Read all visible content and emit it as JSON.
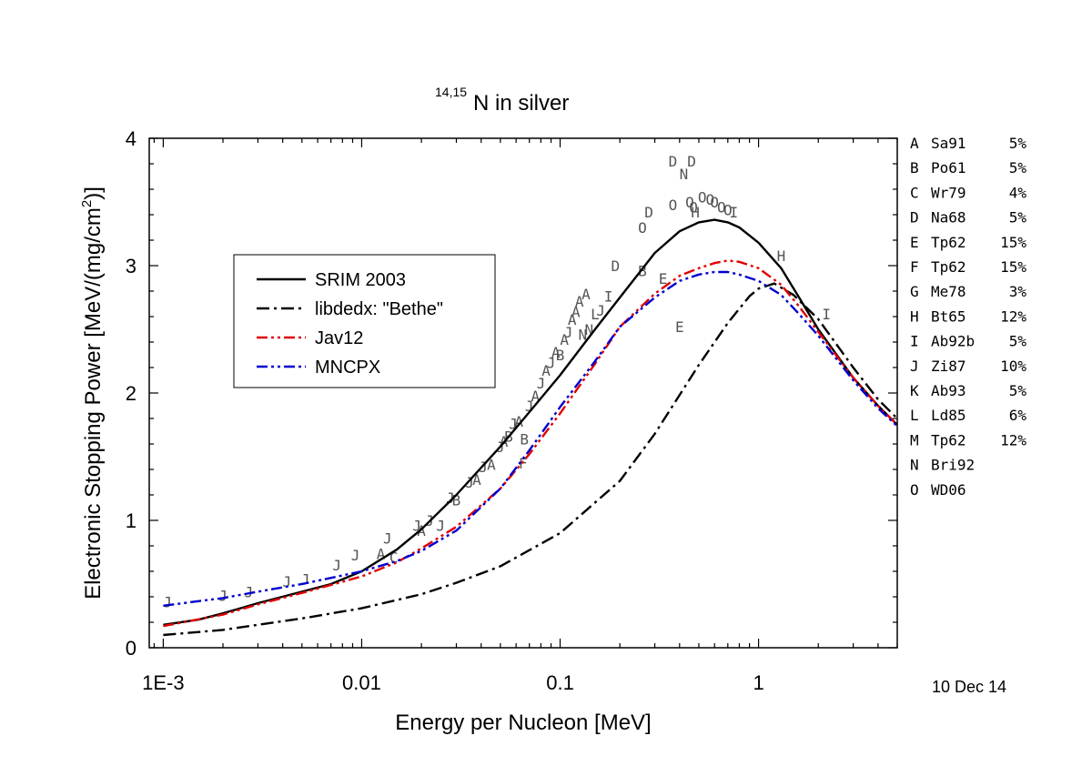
{
  "title_sup": "14,15",
  "title_main": "N in silver",
  "date_stamp": "10 Dec 14",
  "chart_data": {
    "type": "line",
    "title": "14,15N in silver",
    "xlabel": "Energy per Nucleon [MeV]",
    "ylabel_main": "Electronic Stopping Power [MeV/(mg/cm",
    "ylabel_sup": "2",
    "ylabel_end": ")]",
    "x_scale": "log",
    "xlim": [
      0.00085,
      5
    ],
    "ylim": [
      0,
      4
    ],
    "x_ticks": [
      {
        "value": 0.001,
        "label": "1E-3"
      },
      {
        "value": 0.01,
        "label": "0.01"
      },
      {
        "value": 0.1,
        "label": "0.1"
      },
      {
        "value": 1,
        "label": "1"
      }
    ],
    "y_ticks": [
      {
        "value": 0,
        "label": "0"
      },
      {
        "value": 1,
        "label": "1"
      },
      {
        "value": 2,
        "label": "2"
      },
      {
        "value": 3,
        "label": "3"
      },
      {
        "value": 4,
        "label": "4"
      }
    ],
    "legend_position": "upper-left",
    "series": [
      {
        "name": "SRIM 2003",
        "color": "#000000",
        "dash": "solid",
        "x": [
          0.001,
          0.0015,
          0.002,
          0.003,
          0.005,
          0.007,
          0.01,
          0.015,
          0.02,
          0.03,
          0.05,
          0.07,
          0.1,
          0.15,
          0.2,
          0.3,
          0.4,
          0.5,
          0.6,
          0.7,
          0.8,
          1.0,
          1.3,
          1.6,
          2.0,
          3.0,
          4.0,
          5.0
        ],
        "y": [
          0.18,
          0.22,
          0.27,
          0.35,
          0.44,
          0.5,
          0.6,
          0.77,
          0.93,
          1.2,
          1.58,
          1.85,
          2.14,
          2.5,
          2.75,
          3.1,
          3.27,
          3.34,
          3.36,
          3.34,
          3.3,
          3.18,
          2.98,
          2.75,
          2.5,
          2.12,
          1.9,
          1.75
        ]
      },
      {
        "name": "libdedx: \"Bethe\"",
        "color": "#000000",
        "dash": "dashdot",
        "x": [
          0.001,
          0.002,
          0.003,
          0.005,
          0.01,
          0.02,
          0.03,
          0.05,
          0.1,
          0.2,
          0.3,
          0.5,
          0.7,
          0.9,
          1.0,
          1.2,
          1.5,
          2.0,
          3.0,
          4.0,
          5.0
        ],
        "y": [
          0.1,
          0.14,
          0.18,
          0.23,
          0.31,
          0.42,
          0.51,
          0.64,
          0.9,
          1.31,
          1.68,
          2.22,
          2.55,
          2.76,
          2.82,
          2.86,
          2.77,
          2.58,
          2.2,
          1.95,
          1.8
        ]
      },
      {
        "name": "Jav12",
        "color": "#e00000",
        "dash": "dashdotdot",
        "x": [
          0.001,
          0.002,
          0.003,
          0.005,
          0.01,
          0.015,
          0.02,
          0.03,
          0.05,
          0.07,
          0.1,
          0.15,
          0.2,
          0.3,
          0.4,
          0.5,
          0.6,
          0.7,
          0.8,
          1.0,
          1.3,
          1.6,
          2.0,
          3.0,
          4.0,
          5.0
        ],
        "y": [
          0.17,
          0.26,
          0.34,
          0.43,
          0.56,
          0.67,
          0.78,
          0.95,
          1.25,
          1.52,
          1.84,
          2.23,
          2.52,
          2.78,
          2.92,
          2.98,
          3.02,
          3.04,
          3.03,
          2.98,
          2.85,
          2.68,
          2.48,
          2.12,
          1.9,
          1.75
        ]
      },
      {
        "name": "MNCPX",
        "color": "#0000d0",
        "dash": "dashdotdot",
        "x": [
          0.001,
          0.002,
          0.003,
          0.005,
          0.01,
          0.015,
          0.02,
          0.03,
          0.05,
          0.07,
          0.1,
          0.15,
          0.2,
          0.3,
          0.4,
          0.5,
          0.6,
          0.7,
          0.8,
          1.0,
          1.3,
          1.6,
          2.0,
          3.0,
          4.0,
          5.0
        ],
        "y": [
          0.33,
          0.39,
          0.44,
          0.5,
          0.6,
          0.68,
          0.76,
          0.92,
          1.25,
          1.55,
          1.89,
          2.25,
          2.52,
          2.75,
          2.88,
          2.93,
          2.95,
          2.95,
          2.93,
          2.88,
          2.77,
          2.62,
          2.45,
          2.1,
          1.88,
          1.74
        ]
      }
    ],
    "measurement_legend": [
      {
        "code": "A",
        "ref": "Sa91",
        "err": "5%"
      },
      {
        "code": "B",
        "ref": "Po61",
        "err": "5%"
      },
      {
        "code": "C",
        "ref": "Wr79",
        "err": "4%"
      },
      {
        "code": "D",
        "ref": "Na68",
        "err": "5%"
      },
      {
        "code": "E",
        "ref": "Tp62",
        "err": "15%"
      },
      {
        "code": "F",
        "ref": "Tp62",
        "err": "15%"
      },
      {
        "code": "G",
        "ref": "Me78",
        "err": "3%"
      },
      {
        "code": "H",
        "ref": "Bt65",
        "err": "12%"
      },
      {
        "code": "I",
        "ref": "Ab92b",
        "err": "5%"
      },
      {
        "code": "J",
        "ref": "Zi87",
        "err": "10%"
      },
      {
        "code": "K",
        "ref": "Ab93",
        "err": "5%"
      },
      {
        "code": "L",
        "ref": "Ld85",
        "err": "6%"
      },
      {
        "code": "M",
        "ref": "Tp62",
        "err": "12%"
      },
      {
        "code": "N",
        "ref": "Bri92",
        "err": ""
      },
      {
        "code": "O",
        "ref": "WD06",
        "err": ""
      }
    ],
    "measurements": [
      {
        "m": "J",
        "x": 0.00105,
        "y": 0.36
      },
      {
        "m": "J",
        "x": 0.002,
        "y": 0.41
      },
      {
        "m": "J",
        "x": 0.0027,
        "y": 0.44
      },
      {
        "m": "J",
        "x": 0.0042,
        "y": 0.52
      },
      {
        "m": "J",
        "x": 0.0052,
        "y": 0.54
      },
      {
        "m": "J",
        "x": 0.0075,
        "y": 0.65
      },
      {
        "m": "J",
        "x": 0.0093,
        "y": 0.73
      },
      {
        "m": "A",
        "x": 0.0125,
        "y": 0.74
      },
      {
        "m": "C",
        "x": 0.0145,
        "y": 0.71
      },
      {
        "m": "J",
        "x": 0.0135,
        "y": 0.86
      },
      {
        "m": "J",
        "x": 0.019,
        "y": 0.96
      },
      {
        "m": "A",
        "x": 0.02,
        "y": 0.92
      },
      {
        "m": "J",
        "x": 0.022,
        "y": 1.0
      },
      {
        "m": "J",
        "x": 0.025,
        "y": 0.96
      },
      {
        "m": "J",
        "x": 0.028,
        "y": 1.18
      },
      {
        "m": "B",
        "x": 0.03,
        "y": 1.16
      },
      {
        "m": "J",
        "x": 0.035,
        "y": 1.3
      },
      {
        "m": "A",
        "x": 0.038,
        "y": 1.32
      },
      {
        "m": "J",
        "x": 0.041,
        "y": 1.42
      },
      {
        "m": "A",
        "x": 0.045,
        "y": 1.44
      },
      {
        "m": "J",
        "x": 0.05,
        "y": 1.58
      },
      {
        "m": "A",
        "x": 0.052,
        "y": 1.62
      },
      {
        "m": "B",
        "x": 0.055,
        "y": 1.66
      },
      {
        "m": "J",
        "x": 0.058,
        "y": 1.76
      },
      {
        "m": "A",
        "x": 0.062,
        "y": 1.78
      },
      {
        "m": "B",
        "x": 0.066,
        "y": 1.64
      },
      {
        "m": "J",
        "x": 0.07,
        "y": 1.9
      },
      {
        "m": "A",
        "x": 0.075,
        "y": 1.98
      },
      {
        "m": "J",
        "x": 0.08,
        "y": 2.08
      },
      {
        "m": "A",
        "x": 0.085,
        "y": 2.18
      },
      {
        "m": "J",
        "x": 0.09,
        "y": 2.24
      },
      {
        "m": "A",
        "x": 0.095,
        "y": 2.32
      },
      {
        "m": "B",
        "x": 0.1,
        "y": 2.3
      },
      {
        "m": "A",
        "x": 0.105,
        "y": 2.42
      },
      {
        "m": "J",
        "x": 0.11,
        "y": 2.48
      },
      {
        "m": "A",
        "x": 0.115,
        "y": 2.58
      },
      {
        "m": "A",
        "x": 0.12,
        "y": 2.64
      },
      {
        "m": "A",
        "x": 0.125,
        "y": 2.72
      },
      {
        "m": "N",
        "x": 0.13,
        "y": 2.46
      },
      {
        "m": "N",
        "x": 0.14,
        "y": 2.5
      },
      {
        "m": "A",
        "x": 0.135,
        "y": 2.78
      },
      {
        "m": "L",
        "x": 0.15,
        "y": 2.62
      },
      {
        "m": "J",
        "x": 0.16,
        "y": 2.65
      },
      {
        "m": "I",
        "x": 0.175,
        "y": 2.76
      },
      {
        "m": "D",
        "x": 0.19,
        "y": 3.0
      },
      {
        "m": "B",
        "x": 0.26,
        "y": 2.96
      },
      {
        "m": "D",
        "x": 0.28,
        "y": 3.42
      },
      {
        "m": "O",
        "x": 0.26,
        "y": 3.3
      },
      {
        "m": "E",
        "x": 0.33,
        "y": 2.9
      },
      {
        "m": "E",
        "x": 0.4,
        "y": 2.52
      },
      {
        "m": "F",
        "x": 0.065,
        "y": 1.45
      },
      {
        "m": "O",
        "x": 0.37,
        "y": 3.48
      },
      {
        "m": "O",
        "x": 0.45,
        "y": 3.5
      },
      {
        "m": "O",
        "x": 0.47,
        "y": 3.46
      },
      {
        "m": "H",
        "x": 0.48,
        "y": 3.42
      },
      {
        "m": "O",
        "x": 0.52,
        "y": 3.54
      },
      {
        "m": "O",
        "x": 0.57,
        "y": 3.52
      },
      {
        "m": "O",
        "x": 0.6,
        "y": 3.5
      },
      {
        "m": "O",
        "x": 0.65,
        "y": 3.46
      },
      {
        "m": "O",
        "x": 0.7,
        "y": 3.44
      },
      {
        "m": "I",
        "x": 0.75,
        "y": 3.42
      },
      {
        "m": "D",
        "x": 0.37,
        "y": 3.82
      },
      {
        "m": "D",
        "x": 0.46,
        "y": 3.82
      },
      {
        "m": "N",
        "x": 0.42,
        "y": 3.72
      },
      {
        "m": "H",
        "x": 1.3,
        "y": 3.08
      },
      {
        "m": "I",
        "x": 2.2,
        "y": 2.62
      }
    ]
  }
}
